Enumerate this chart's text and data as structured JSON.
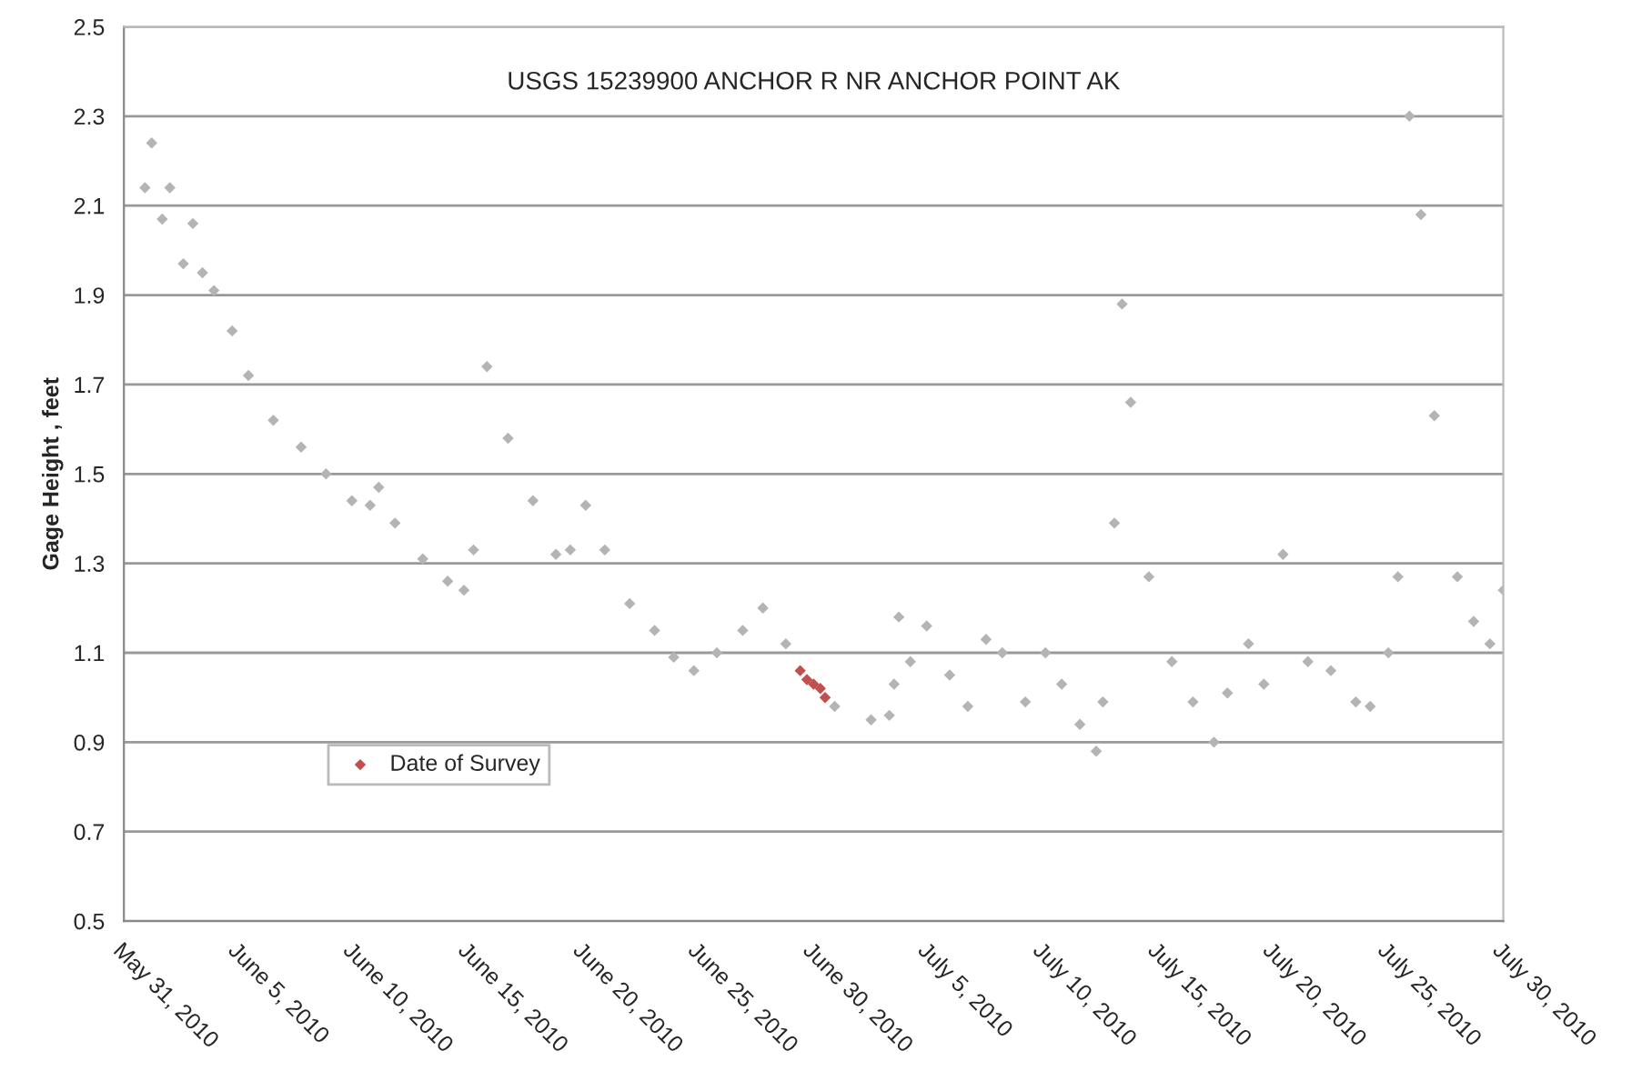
{
  "chart_data": {
    "type": "scatter",
    "title": "USGS 15239900 ANCHOR R NR ANCHOR POINT AK",
    "ylabel": "Gage Height , feet",
    "xlim": [
      "2010-05-31",
      "2010-07-30"
    ],
    "xticks": [
      {
        "value": "2010-05-31",
        "label": "May 31, 2010"
      },
      {
        "value": "2010-06-05",
        "label": "June 5, 2010"
      },
      {
        "value": "2010-06-10",
        "label": "June 10, 2010"
      },
      {
        "value": "2010-06-15",
        "label": "June 15, 2010"
      },
      {
        "value": "2010-06-20",
        "label": "June 20, 2010"
      },
      {
        "value": "2010-06-25",
        "label": "June 25, 2010"
      },
      {
        "value": "2010-06-30",
        "label": "June 30, 2010"
      },
      {
        "value": "2010-07-05",
        "label": "July 5, 2010"
      },
      {
        "value": "2010-07-10",
        "label": "July 10, 2010"
      },
      {
        "value": "2010-07-15",
        "label": "July 15, 2010"
      },
      {
        "value": "2010-07-20",
        "label": "July 20, 2010"
      },
      {
        "value": "2010-07-25",
        "label": "July 25, 2010"
      },
      {
        "value": "2010-07-30",
        "label": "July 30, 2010"
      }
    ],
    "ylim": [
      0.5,
      2.5
    ],
    "yticks": [
      0.5,
      0.7,
      0.9,
      1.1,
      1.3,
      1.5,
      1.7,
      1.9,
      2.1,
      2.3,
      2.5
    ],
    "grid": "y",
    "legend": "bottom left",
    "marker": "diamond",
    "series": [
      {
        "color": "#b4b4b4",
        "x": [
          "2010-05-31T22:00",
          "2010-06-01T05:00",
          "2010-06-01T16:00",
          "2010-06-02T00:00",
          "2010-06-02T14:00",
          "2010-06-03T00:00",
          "2010-06-03T10:00",
          "2010-06-03T22:00",
          "2010-06-04T17:00",
          "2010-06-05T10:00",
          "2010-06-06T12:00",
          "2010-06-07T17:00",
          "2010-06-08T19:00",
          "2010-06-09T22:00",
          "2010-06-10T17:00",
          "2010-06-11T02:00",
          "2010-06-11T19:00",
          "2010-06-13T00:00",
          "2010-06-14T02:00",
          "2010-06-14T19:00",
          "2010-06-15T05:00",
          "2010-06-15T19:00",
          "2010-06-16T17:00",
          "2010-06-17T19:00",
          "2010-06-18T19:00",
          "2010-06-19T10:00",
          "2010-06-20T02:00",
          "2010-06-20T22:00",
          "2010-06-22T00:00",
          "2010-06-23T02:00",
          "2010-06-23T22:00",
          "2010-06-24T19:00",
          "2010-06-25T19:00",
          "2010-06-26T22:00",
          "2010-06-27T19:00",
          "2010-06-28T19:00",
          "2010-06-30T22:00",
          "2010-07-02T12:00",
          "2010-07-03T07:00",
          "2010-07-03T12:00",
          "2010-07-03T17:00",
          "2010-07-04T05:00",
          "2010-07-04T22:00",
          "2010-07-05T22:00",
          "2010-07-06T17:00",
          "2010-07-07T12:00",
          "2010-07-08T05:00",
          "2010-07-09T05:00",
          "2010-07-10T02:00",
          "2010-07-10T19:00",
          "2010-07-11T14:00",
          "2010-07-12T07:00",
          "2010-07-12T14:00",
          "2010-07-13T02:00",
          "2010-07-13T10:00",
          "2010-07-13T19:00",
          "2010-07-14T14:00",
          "2010-07-15T14:00",
          "2010-07-16T12:00",
          "2010-07-17T10:00",
          "2010-07-18T00:00",
          "2010-07-18T22:00",
          "2010-07-19T14:00",
          "2010-07-20T10:00",
          "2010-07-21T12:00",
          "2010-07-22T12:00",
          "2010-07-23T14:00",
          "2010-07-24T05:00",
          "2010-07-25T00:00",
          "2010-07-25T10:00",
          "2010-07-25T22:00",
          "2010-07-26T10:00",
          "2010-07-27T00:00",
          "2010-07-28T00:00",
          "2010-07-28T17:00",
          "2010-07-29T10:00",
          "2010-07-30T00:00"
        ],
        "values": [
          2.14,
          2.24,
          2.07,
          2.14,
          1.97,
          2.06,
          1.95,
          1.91,
          1.82,
          1.72,
          1.62,
          1.56,
          1.5,
          1.44,
          1.43,
          1.47,
          1.39,
          1.31,
          1.26,
          1.24,
          1.33,
          1.74,
          1.58,
          1.44,
          1.32,
          1.33,
          1.43,
          1.33,
          1.21,
          1.15,
          1.09,
          1.06,
          1.1,
          1.15,
          1.2,
          1.12,
          0.98,
          0.95,
          0.96,
          1.03,
          1.18,
          1.08,
          1.16,
          1.05,
          0.98,
          1.13,
          1.1,
          0.99,
          1.1,
          1.03,
          0.94,
          0.88,
          0.99,
          1.39,
          1.88,
          1.66,
          1.27,
          1.08,
          0.99,
          0.9,
          1.01,
          1.12,
          1.03,
          1.32,
          1.08,
          1.06,
          0.99,
          0.98,
          1.1,
          1.27,
          2.3,
          2.08,
          1.63,
          1.27,
          1.17,
          1.12,
          1.24
        ]
      },
      {
        "name": "Date of Survey",
        "color": "#c0504d",
        "x": [
          "2010-06-29T10:00",
          "2010-06-29T17:00",
          "2010-06-30T00:00",
          "2010-06-30T07:00",
          "2010-06-30T12:00"
        ],
        "values": [
          1.06,
          1.04,
          1.03,
          1.02,
          1.0
        ]
      }
    ]
  }
}
